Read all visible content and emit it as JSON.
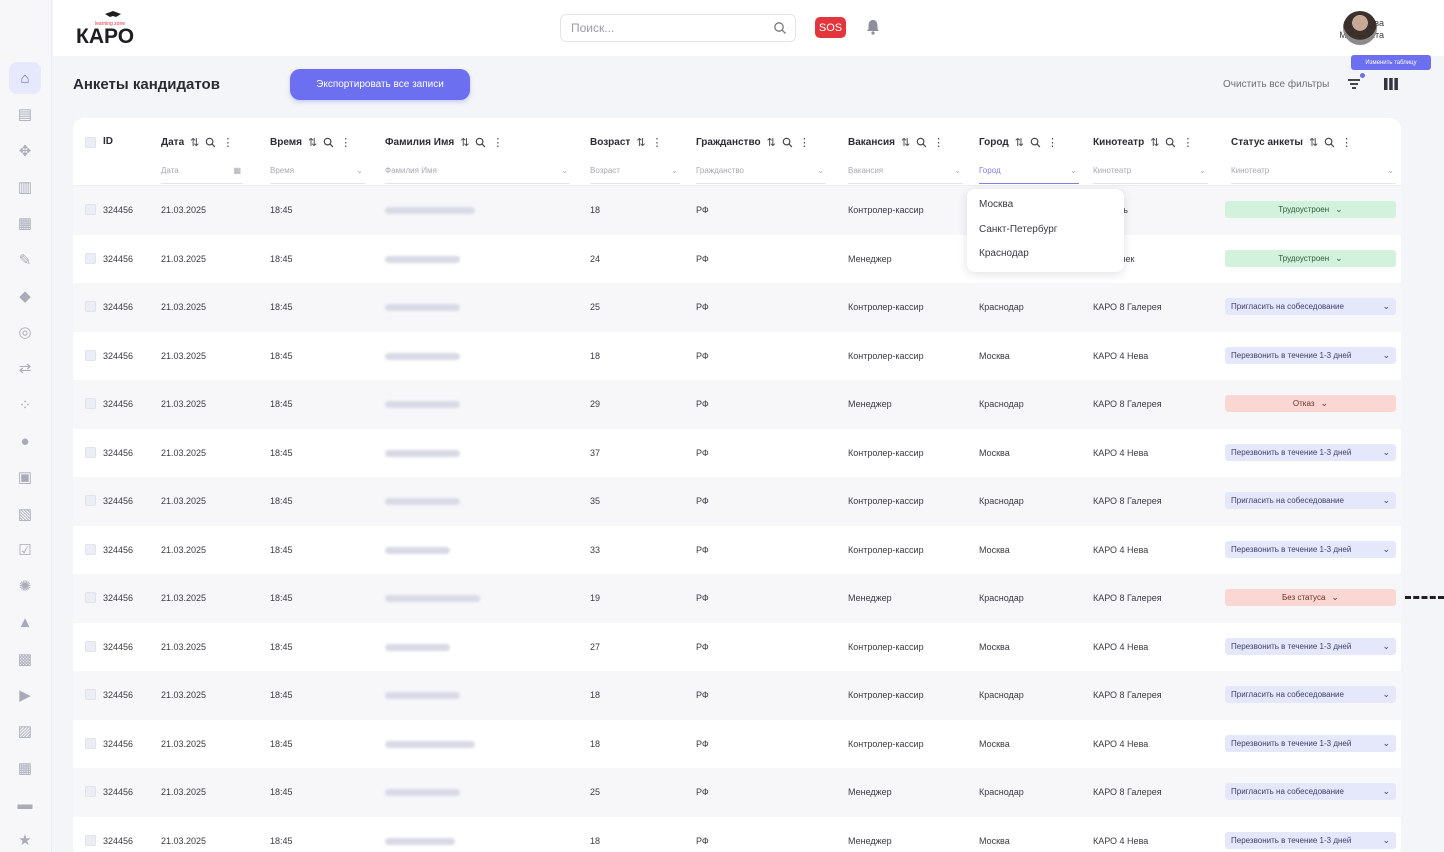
{
  "header": {
    "search_placeholder": "Поиск...",
    "sos_label": "SOS",
    "user_first": "Игнатова",
    "user_last": "Маргарита"
  },
  "logo": {
    "text": "КАРО",
    "subtitle": "learning zone"
  },
  "toolbar": {
    "title": "Анкеты кандидатов",
    "export_label": "Экспортировать все записи",
    "clear_filters_label": "Очистить все фильтры",
    "tooltip": "Изменить таблицу"
  },
  "columns": [
    {
      "label": "ID",
      "filter": ""
    },
    {
      "label": "Дата",
      "filter": "Дата"
    },
    {
      "label": "Время",
      "filter": "Время"
    },
    {
      "label": "Фамилия Имя",
      "filter": "Фамилия Имя"
    },
    {
      "label": "Возраст",
      "filter": "Возраст"
    },
    {
      "label": "Гражданство",
      "filter": "Гражданство"
    },
    {
      "label": "Вакансия",
      "filter": "Вакансия"
    },
    {
      "label": "Город",
      "filter": "Город"
    },
    {
      "label": "Кинотеатр",
      "filter": "Кинотеатр"
    },
    {
      "label": "Статус анкеты",
      "filter": "Кинотеатр"
    }
  ],
  "city_dropdown": [
    "Москва",
    "Санкт-Петербург",
    "Краснодар"
  ],
  "rows": [
    {
      "id": "324456",
      "date": "21.03.2025",
      "time": "18:45",
      "age": "18",
      "citizenship": "РФ",
      "vacancy": "Контролер-кассир",
      "city": "",
      "cinema": "Октябрь",
      "status": "Трудоустроен",
      "status_type": "green"
    },
    {
      "id": "324456",
      "date": "21.03.2025",
      "time": "18:45",
      "age": "24",
      "citizenship": "РФ",
      "vacancy": "Менеджер",
      "city": "",
      "cinema": "на Стачек",
      "status": "Трудоустроен",
      "status_type": "green"
    },
    {
      "id": "324456",
      "date": "21.03.2025",
      "time": "18:45",
      "age": "25",
      "citizenship": "РФ",
      "vacancy": "Контролер-кассир",
      "city": "Краснодар",
      "cinema": "КАРО 8 Галерея",
      "status": "Пригласить на собеседование",
      "status_type": "blue"
    },
    {
      "id": "324456",
      "date": "21.03.2025",
      "time": "18:45",
      "age": "18",
      "citizenship": "РФ",
      "vacancy": "Контролер-кассир",
      "city": "Москва",
      "cinema": "КАРО 4 Нева",
      "status": "Перезвонить в течение 1-3 дней",
      "status_type": "blue"
    },
    {
      "id": "324456",
      "date": "21.03.2025",
      "time": "18:45",
      "age": "29",
      "citizenship": "РФ",
      "vacancy": "Менеджер",
      "city": "Краснодар",
      "cinema": "КАРО 8 Галерея",
      "status": "Отказ",
      "status_type": "red"
    },
    {
      "id": "324456",
      "date": "21.03.2025",
      "time": "18:45",
      "age": "37",
      "citizenship": "РФ",
      "vacancy": "Контролер-кассир",
      "city": "Москва",
      "cinema": "КАРО 4 Нева",
      "status": "Перезвонить в течение 1-3 дней",
      "status_type": "blue"
    },
    {
      "id": "324456",
      "date": "21.03.2025",
      "time": "18:45",
      "age": "35",
      "citizenship": "РФ",
      "vacancy": "Контролер-кассир",
      "city": "Краснодар",
      "cinema": "КАРО 8 Галерея",
      "status": "Пригласить на собеседование",
      "status_type": "blue"
    },
    {
      "id": "324456",
      "date": "21.03.2025",
      "time": "18:45",
      "age": "33",
      "citizenship": "РФ",
      "vacancy": "Контролер-кассир",
      "city": "Москва",
      "cinema": "КАРО 4 Нева",
      "status": "Перезвонить в течение 1-3 дней",
      "status_type": "blue"
    },
    {
      "id": "324456",
      "date": "21.03.2025",
      "time": "18:45",
      "age": "19",
      "citizenship": "РФ",
      "vacancy": "Менеджер",
      "city": "Краснодар",
      "cinema": "КАРО 8 Галерея",
      "status": "Без статуса",
      "status_type": "red"
    },
    {
      "id": "324456",
      "date": "21.03.2025",
      "time": "18:45",
      "age": "27",
      "citizenship": "РФ",
      "vacancy": "Контролер-кассир",
      "city": "Москва",
      "cinema": "КАРО 4 Нева",
      "status": "Перезвонить в течение 1-3 дней",
      "status_type": "blue"
    },
    {
      "id": "324456",
      "date": "21.03.2025",
      "time": "18:45",
      "age": "18",
      "citizenship": "РФ",
      "vacancy": "Контролер-кассир",
      "city": "Краснодар",
      "cinema": "КАРО 8 Галерея",
      "status": "Пригласить на собеседование",
      "status_type": "blue"
    },
    {
      "id": "324456",
      "date": "21.03.2025",
      "time": "18:45",
      "age": "18",
      "citizenship": "РФ",
      "vacancy": "Контролер-кассир",
      "city": "Москва",
      "cinema": "КАРО 4 Нева",
      "status": "Перезвонить в течение 1-3 дней",
      "status_type": "blue"
    },
    {
      "id": "324456",
      "date": "21.03.2025",
      "time": "18:45",
      "age": "25",
      "citizenship": "РФ",
      "vacancy": "Менеджер",
      "city": "Краснодар",
      "cinema": "КАРО 8 Галерея",
      "status": "Пригласить на собеседование",
      "status_type": "blue"
    },
    {
      "id": "324456",
      "date": "21.03.2025",
      "time": "18:45",
      "age": "18",
      "citizenship": "РФ",
      "vacancy": "Менеджер",
      "city": "Москва",
      "cinema": "КАРО 4 Нева",
      "status": "Перезвонить в течение 1-3 дней",
      "status_type": "blue"
    }
  ],
  "sidebar_icons": [
    "home-icon",
    "documents-icon",
    "org-structure-icon",
    "book-icon",
    "library-icon",
    "edit-icon",
    "education-icon",
    "target-icon",
    "transfer-icon",
    "team-icon",
    "idea-icon",
    "id-card-icon",
    "clipboard-icon",
    "checklist-icon",
    "settings-icon",
    "like-icon",
    "cinema-icon",
    "video-icon",
    "calendar-icon",
    "schedule-icon",
    "shop-icon",
    "favorites-icon"
  ],
  "colors": {
    "accent": "#6c6ff0",
    "sos": "#e3353c",
    "status_green": "#d3f2dd",
    "status_blue": "#e5e8fb",
    "status_red": "#fbd7d3"
  }
}
